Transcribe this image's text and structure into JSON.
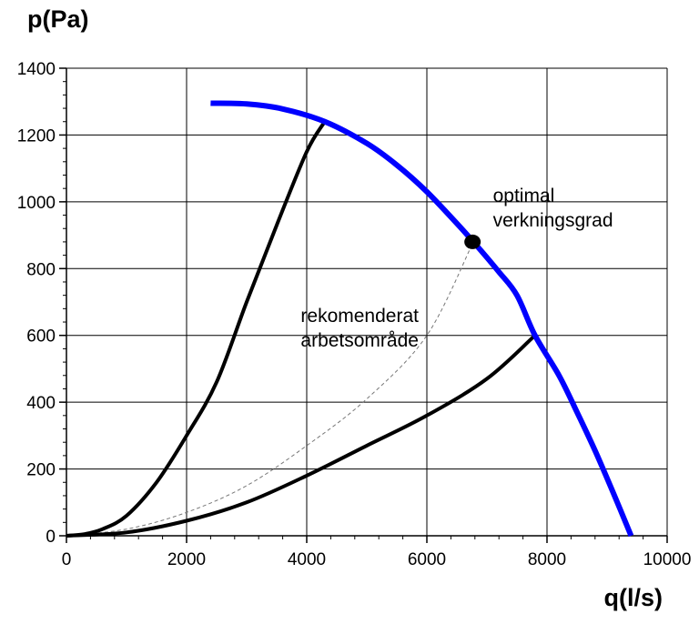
{
  "chart_data": {
    "type": "line",
    "xlabel": "q(l/s)",
    "ylabel": "p(Pa)",
    "xlim": [
      0,
      10000
    ],
    "ylim": [
      0,
      1400
    ],
    "x_ticks": [
      0,
      2000,
      4000,
      6000,
      8000,
      10000
    ],
    "y_ticks": [
      0,
      200,
      400,
      600,
      800,
      1000,
      1200,
      1400
    ],
    "x_tick_labels": [
      "0",
      "2000",
      "4000",
      "6000",
      "8000",
      "10000"
    ],
    "y_tick_labels": [
      "0",
      "200",
      "400",
      "600",
      "800",
      "1000",
      "1200",
      "1400"
    ],
    "grid": true,
    "colors": {
      "fan_curve": "#0000ff",
      "system_curves": "#000000",
      "optimal_curve": "#777777"
    },
    "series": [
      {
        "id": "fan",
        "points": [
          [
            2400,
            1295
          ],
          [
            3000,
            1293
          ],
          [
            3600,
            1278
          ],
          [
            4300,
            1240
          ],
          [
            5000,
            1175
          ],
          [
            5500,
            1110
          ],
          [
            6000,
            1030
          ],
          [
            6500,
            935
          ],
          [
            6800,
            875
          ],
          [
            7200,
            790
          ],
          [
            7500,
            720
          ],
          [
            7800,
            600
          ],
          [
            8200,
            480
          ],
          [
            8500,
            370
          ],
          [
            8800,
            255
          ],
          [
            9100,
            130
          ],
          [
            9400,
            0
          ]
        ]
      },
      {
        "id": "system-steep",
        "points": [
          [
            0,
            0
          ],
          [
            300,
            5
          ],
          [
            600,
            20
          ],
          [
            1000,
            60
          ],
          [
            1500,
            160
          ],
          [
            2000,
            300
          ],
          [
            2500,
            460
          ],
          [
            3000,
            700
          ],
          [
            3500,
            930
          ],
          [
            4000,
            1150
          ],
          [
            4300,
            1240
          ]
        ]
      },
      {
        "id": "system-flat",
        "points": [
          [
            0,
            0
          ],
          [
            1000,
            10
          ],
          [
            2000,
            45
          ],
          [
            3000,
            100
          ],
          [
            4000,
            180
          ],
          [
            5000,
            270
          ],
          [
            6000,
            360
          ],
          [
            7000,
            470
          ],
          [
            7800,
            600
          ]
        ]
      },
      {
        "id": "optimal",
        "points": [
          [
            0,
            0
          ],
          [
            1000,
            20
          ],
          [
            2000,
            70
          ],
          [
            3000,
            150
          ],
          [
            4000,
            270
          ],
          [
            5000,
            410
          ],
          [
            6000,
            600
          ],
          [
            6760,
            875
          ]
        ]
      }
    ],
    "optimal_point": {
      "x": 6760,
      "y": 880
    },
    "annotations": [
      {
        "lines": [
          "optimal",
          "verkningsgrad"
        ],
        "x": 7100,
        "y": 1000
      },
      {
        "lines": [
          "rekomenderat",
          "arbetsområde"
        ],
        "x": 3900,
        "y": 640
      }
    ]
  }
}
